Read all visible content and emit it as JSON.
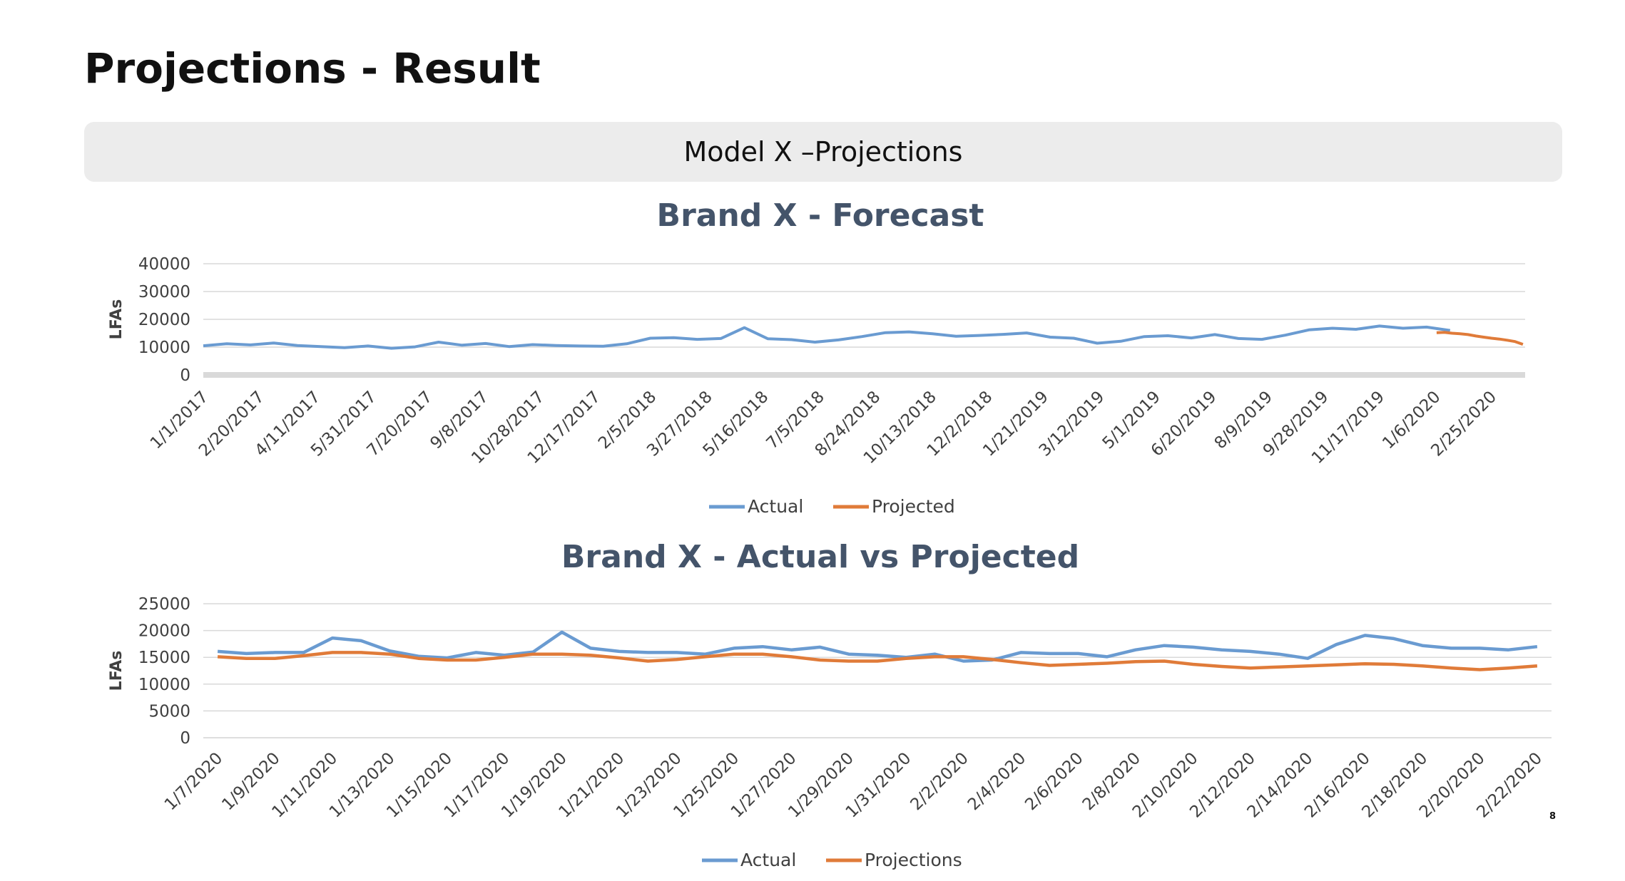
{
  "slide": {
    "title": "Projections - Result",
    "banner": "Model X –Projections",
    "page_number": "8"
  },
  "colors": {
    "actual": "#6a9bd1",
    "projected": "#e07b39",
    "grid": "#d9d9d9",
    "title": "#44546a"
  },
  "chart_data": [
    {
      "type": "line",
      "title": "Brand X - Forecast",
      "ylabel": "LFAs",
      "xlabel": "",
      "ylim": [
        0,
        40000
      ],
      "yticks": [
        0,
        10000,
        20000,
        30000,
        40000
      ],
      "grid": true,
      "legend": "bottom",
      "x_tick_labels": [
        "1/1/2017",
        "2/20/2017",
        "4/11/2017",
        "5/31/2017",
        "7/20/2017",
        "9/8/2017",
        "10/28/2017",
        "12/17/2017",
        "2/5/2018",
        "3/27/2018",
        "5/16/2018",
        "7/5/2018",
        "8/24/2018",
        "10/13/2018",
        "12/2/2018",
        "1/21/2019",
        "3/12/2019",
        "5/1/2019",
        "6/20/2019",
        "8/9/2019",
        "9/28/2019",
        "11/17/2019",
        "1/6/2020",
        "2/25/2020"
      ],
      "series": [
        {
          "name": "Actual",
          "x": [
            "1/1/2017",
            "1/22/2017",
            "2/12/2017",
            "3/5/2017",
            "3/26/2017",
            "4/16/2017",
            "5/7/2017",
            "5/28/2017",
            "6/18/2017",
            "7/9/2017",
            "7/30/2017",
            "8/20/2017",
            "9/10/2017",
            "10/1/2017",
            "10/22/2017",
            "11/12/2017",
            "12/3/2017",
            "12/24/2017",
            "1/14/2018",
            "2/4/2018",
            "2/25/2018",
            "3/18/2018",
            "4/8/2018",
            "4/29/2018",
            "5/20/2018",
            "6/10/2018",
            "7/1/2018",
            "7/22/2018",
            "8/12/2018",
            "9/2/2018",
            "9/23/2018",
            "10/14/2018",
            "11/4/2018",
            "11/25/2018",
            "12/16/2018",
            "1/6/2019",
            "1/27/2019",
            "2/17/2019",
            "3/10/2019",
            "3/31/2019",
            "4/21/2019",
            "5/12/2019",
            "6/2/2019",
            "6/23/2019",
            "7/14/2019",
            "8/4/2019",
            "8/25/2019",
            "9/15/2019",
            "10/6/2019",
            "10/27/2019",
            "11/17/2019",
            "12/8/2019",
            "12/29/2019",
            "1/19/2020"
          ],
          "values": [
            10500,
            11200,
            10800,
            11500,
            10600,
            10200,
            9800,
            10400,
            9600,
            10100,
            11800,
            10700,
            11300,
            10200,
            10900,
            10600,
            10400,
            10300,
            11200,
            13200,
            13400,
            12800,
            13100,
            17000,
            13000,
            12700,
            11800,
            12600,
            13800,
            15200,
            15500,
            14800,
            13900,
            14200,
            14600,
            15100,
            13600,
            13200,
            11400,
            12100,
            13800,
            14100,
            13300,
            14500,
            13100,
            12800,
            14300,
            16200,
            16800,
            16400,
            17600,
            16800,
            17200,
            16000
          ]
        },
        {
          "name": "Projected",
          "x": [
            "1/7/2020",
            "1/14/2020",
            "1/21/2020",
            "1/28/2020",
            "2/4/2020",
            "2/11/2020",
            "2/18/2020",
            "2/25/2020",
            "3/3/2020",
            "3/10/2020",
            "3/17/2020",
            "3/24/2020"
          ],
          "values": [
            15200,
            15300,
            15000,
            14800,
            14500,
            14000,
            13600,
            13200,
            12900,
            12500,
            12000,
            11000
          ]
        }
      ]
    },
    {
      "type": "line",
      "title": "Brand X - Actual vs Projected",
      "ylabel": "LFAs",
      "xlabel": "",
      "ylim": [
        0,
        25000
      ],
      "yticks": [
        0,
        5000,
        10000,
        15000,
        20000,
        25000
      ],
      "grid": true,
      "legend": "bottom",
      "categories": [
        "1/7/2020",
        "1/8/2020",
        "1/9/2020",
        "1/10/2020",
        "1/11/2020",
        "1/12/2020",
        "1/13/2020",
        "1/14/2020",
        "1/15/2020",
        "1/16/2020",
        "1/17/2020",
        "1/18/2020",
        "1/19/2020",
        "1/20/2020",
        "1/21/2020",
        "1/22/2020",
        "1/23/2020",
        "1/24/2020",
        "1/25/2020",
        "1/26/2020",
        "1/27/2020",
        "1/28/2020",
        "1/29/2020",
        "1/30/2020",
        "1/31/2020",
        "2/1/2020",
        "2/2/2020",
        "2/3/2020",
        "2/4/2020",
        "2/5/2020",
        "2/6/2020",
        "2/7/2020",
        "2/8/2020",
        "2/9/2020",
        "2/10/2020",
        "2/11/2020",
        "2/12/2020",
        "2/13/2020",
        "2/14/2020",
        "2/15/2020",
        "2/16/2020",
        "2/17/2020",
        "2/18/2020",
        "2/19/2020",
        "2/20/2020",
        "2/21/2020",
        "2/22/2020"
      ],
      "x_tick_labels": [
        "1/7/2020",
        "1/9/2020",
        "1/11/2020",
        "1/13/2020",
        "1/15/2020",
        "1/17/2020",
        "1/19/2020",
        "1/21/2020",
        "1/23/2020",
        "1/25/2020",
        "1/27/2020",
        "1/29/2020",
        "1/31/2020",
        "2/2/2020",
        "2/4/2020",
        "2/6/2020",
        "2/8/2020",
        "2/10/2020",
        "2/12/2020",
        "2/14/2020",
        "2/16/2020",
        "2/18/2020",
        "2/20/2020",
        "2/22/2020"
      ],
      "series": [
        {
          "name": "Actual",
          "values": [
            16100,
            15700,
            15900,
            15900,
            18600,
            18100,
            16200,
            15200,
            14900,
            15900,
            15400,
            16000,
            19700,
            16700,
            16100,
            15900,
            15900,
            15600,
            16700,
            17000,
            16400,
            16900,
            15600,
            15400,
            15000,
            15600,
            14300,
            14500,
            15900,
            15700,
            15700,
            15100,
            16400,
            17200,
            16900,
            16400,
            16100,
            15600,
            14800,
            17400,
            19100,
            18500,
            17200,
            16700,
            16700,
            16400,
            17000
          ]
        },
        {
          "name": "Projections",
          "values": [
            15100,
            14800,
            14800,
            15300,
            15900,
            15900,
            15600,
            14800,
            14500,
            14500,
            15000,
            15600,
            15600,
            15400,
            14900,
            14300,
            14600,
            15100,
            15600,
            15600,
            15100,
            14500,
            14300,
            14300,
            14800,
            15100,
            15100,
            14600,
            14000,
            13500,
            13700,
            13900,
            14200,
            14300,
            13700,
            13300,
            13000,
            13200,
            13400,
            13600,
            13800,
            13700,
            13400,
            13000,
            12700,
            13000,
            13400
          ]
        }
      ]
    }
  ]
}
